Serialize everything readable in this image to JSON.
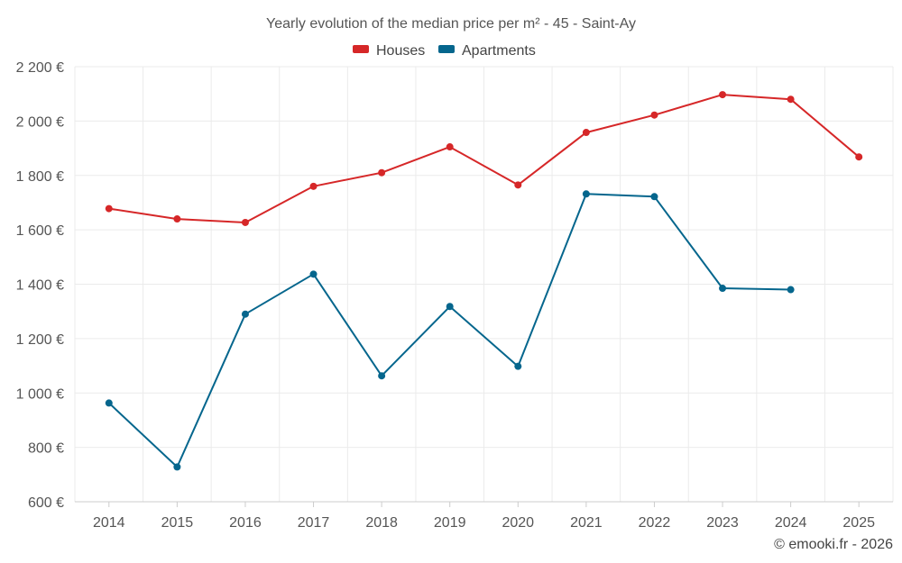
{
  "chart_data": {
    "type": "line",
    "title": "Yearly evolution of the median price per m² - 45 - Saint-Ay",
    "xlabel": "",
    "ylabel": "",
    "categories": [
      "2014",
      "2015",
      "2016",
      "2017",
      "2018",
      "2019",
      "2020",
      "2021",
      "2022",
      "2023",
      "2024",
      "2025"
    ],
    "y_ticks": [
      600,
      800,
      1000,
      1200,
      1400,
      1600,
      1800,
      2000,
      2200
    ],
    "y_tick_labels": [
      "600 €",
      "800 €",
      "1 000 €",
      "1 200 €",
      "1 400 €",
      "1 600 €",
      "1 800 €",
      "2 000 €",
      "2 200 €"
    ],
    "ylim": [
      600,
      2200
    ],
    "grid": true,
    "legend_position": "top-center",
    "series": [
      {
        "name": "Houses",
        "color": "#d62728",
        "values": [
          1678,
          1640,
          1627,
          1760,
          1810,
          1905,
          1765,
          1958,
          2022,
          2097,
          2080,
          1868
        ]
      },
      {
        "name": "Apartments",
        "color": "#05668d",
        "values": [
          963,
          728,
          1290,
          1437,
          1063,
          1318,
          1098,
          1732,
          1722,
          1385,
          1380,
          null
        ]
      }
    ],
    "credit": "© emooki.fr - 2026"
  }
}
